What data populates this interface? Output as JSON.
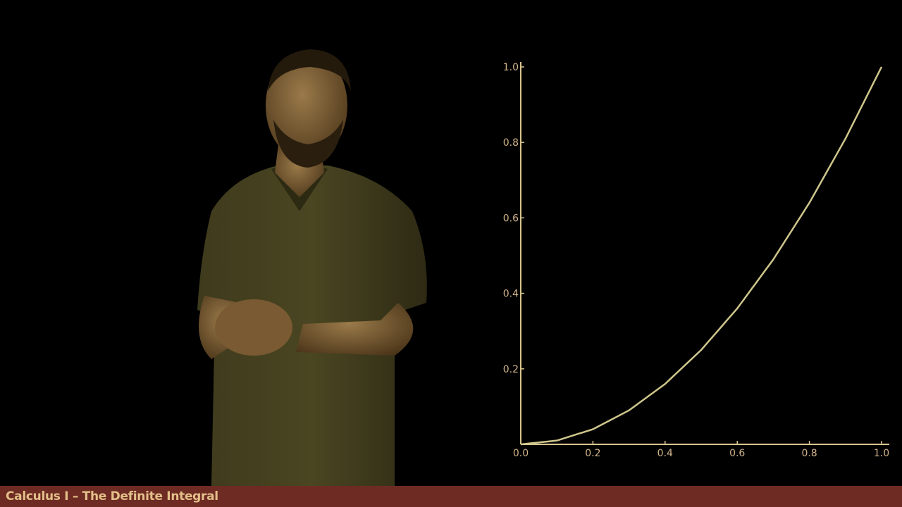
{
  "footer": {
    "title": "Calculus I – The Definite Integral"
  },
  "colors": {
    "background": "#000000",
    "axis": "#d8c48e",
    "curve": "#cfc68c",
    "tick_text": "#d2b48a",
    "footer_bg": "#6e2b23",
    "footer_text": "#e3c08a"
  },
  "presenter": {
    "icon": "presenter-figure"
  },
  "chart_data": {
    "type": "line",
    "title": "",
    "xlabel": "",
    "ylabel": "",
    "xlim": [
      0,
      1
    ],
    "ylim": [
      0,
      1
    ],
    "x_ticks": [
      "0.0",
      "0.2",
      "0.4",
      "0.6",
      "0.8",
      "1.0"
    ],
    "y_ticks": [
      "0.2",
      "0.4",
      "0.6",
      "0.8",
      "1.0"
    ],
    "grid": false,
    "series": [
      {
        "function": "y = x^2",
        "x": [
          0,
          0.1,
          0.2,
          0.3,
          0.4,
          0.5,
          0.6,
          0.7,
          0.8,
          0.9,
          1.0
        ],
        "y": [
          0,
          0.01,
          0.04,
          0.09,
          0.16,
          0.25,
          0.36,
          0.49,
          0.64,
          0.81,
          1.0
        ]
      }
    ]
  }
}
